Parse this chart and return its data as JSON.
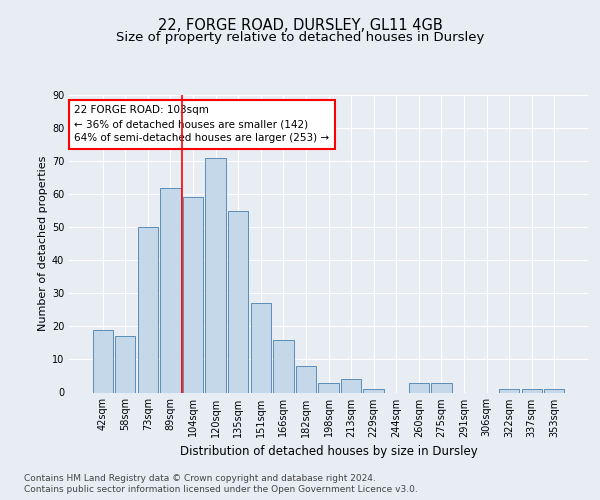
{
  "title1": "22, FORGE ROAD, DURSLEY, GL11 4GB",
  "title2": "Size of property relative to detached houses in Dursley",
  "xlabel": "Distribution of detached houses by size in Dursley",
  "ylabel": "Number of detached properties",
  "categories": [
    "42sqm",
    "58sqm",
    "73sqm",
    "89sqm",
    "104sqm",
    "120sqm",
    "135sqm",
    "151sqm",
    "166sqm",
    "182sqm",
    "198sqm",
    "213sqm",
    "229sqm",
    "244sqm",
    "260sqm",
    "275sqm",
    "291sqm",
    "306sqm",
    "322sqm",
    "337sqm",
    "353sqm"
  ],
  "values": [
    19,
    17,
    50,
    62,
    59,
    71,
    55,
    27,
    16,
    8,
    3,
    4,
    1,
    0,
    3,
    3,
    0,
    0,
    1,
    1,
    1
  ],
  "bar_color": "#c5d8ea",
  "bar_edge_color": "#5b8db8",
  "redline_index": 4,
  "annotation_title": "22 FORGE ROAD: 103sqm",
  "annotation_line1": "← 36% of detached houses are smaller (142)",
  "annotation_line2": "64% of semi-detached houses are larger (253) →",
  "ylim": [
    0,
    90
  ],
  "yticks": [
    0,
    10,
    20,
    30,
    40,
    50,
    60,
    70,
    80,
    90
  ],
  "footnote1": "Contains HM Land Registry data © Crown copyright and database right 2024.",
  "footnote2": "Contains public sector information licensed under the Open Government Licence v3.0.",
  "bg_color": "#e8edf3",
  "plot_bg_color": "#e8edf3",
  "grid_color": "#ffffff",
  "title1_fontsize": 10.5,
  "title2_fontsize": 9.5,
  "xlabel_fontsize": 8.5,
  "ylabel_fontsize": 8,
  "tick_fontsize": 7,
  "annot_fontsize": 7.5,
  "footnote_fontsize": 6.5
}
